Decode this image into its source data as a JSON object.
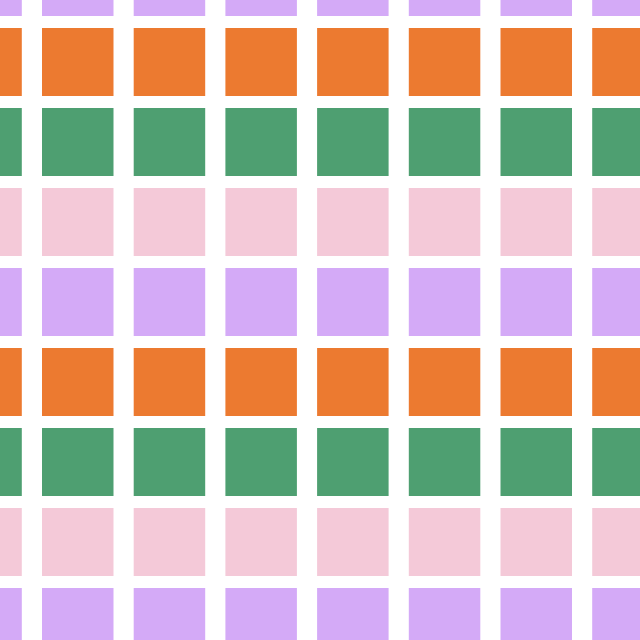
{
  "pattern": {
    "colors": [
      "#d4aaf7",
      "#ec7a30",
      "#4e9f71",
      "#f4c9d8"
    ]
  }
}
